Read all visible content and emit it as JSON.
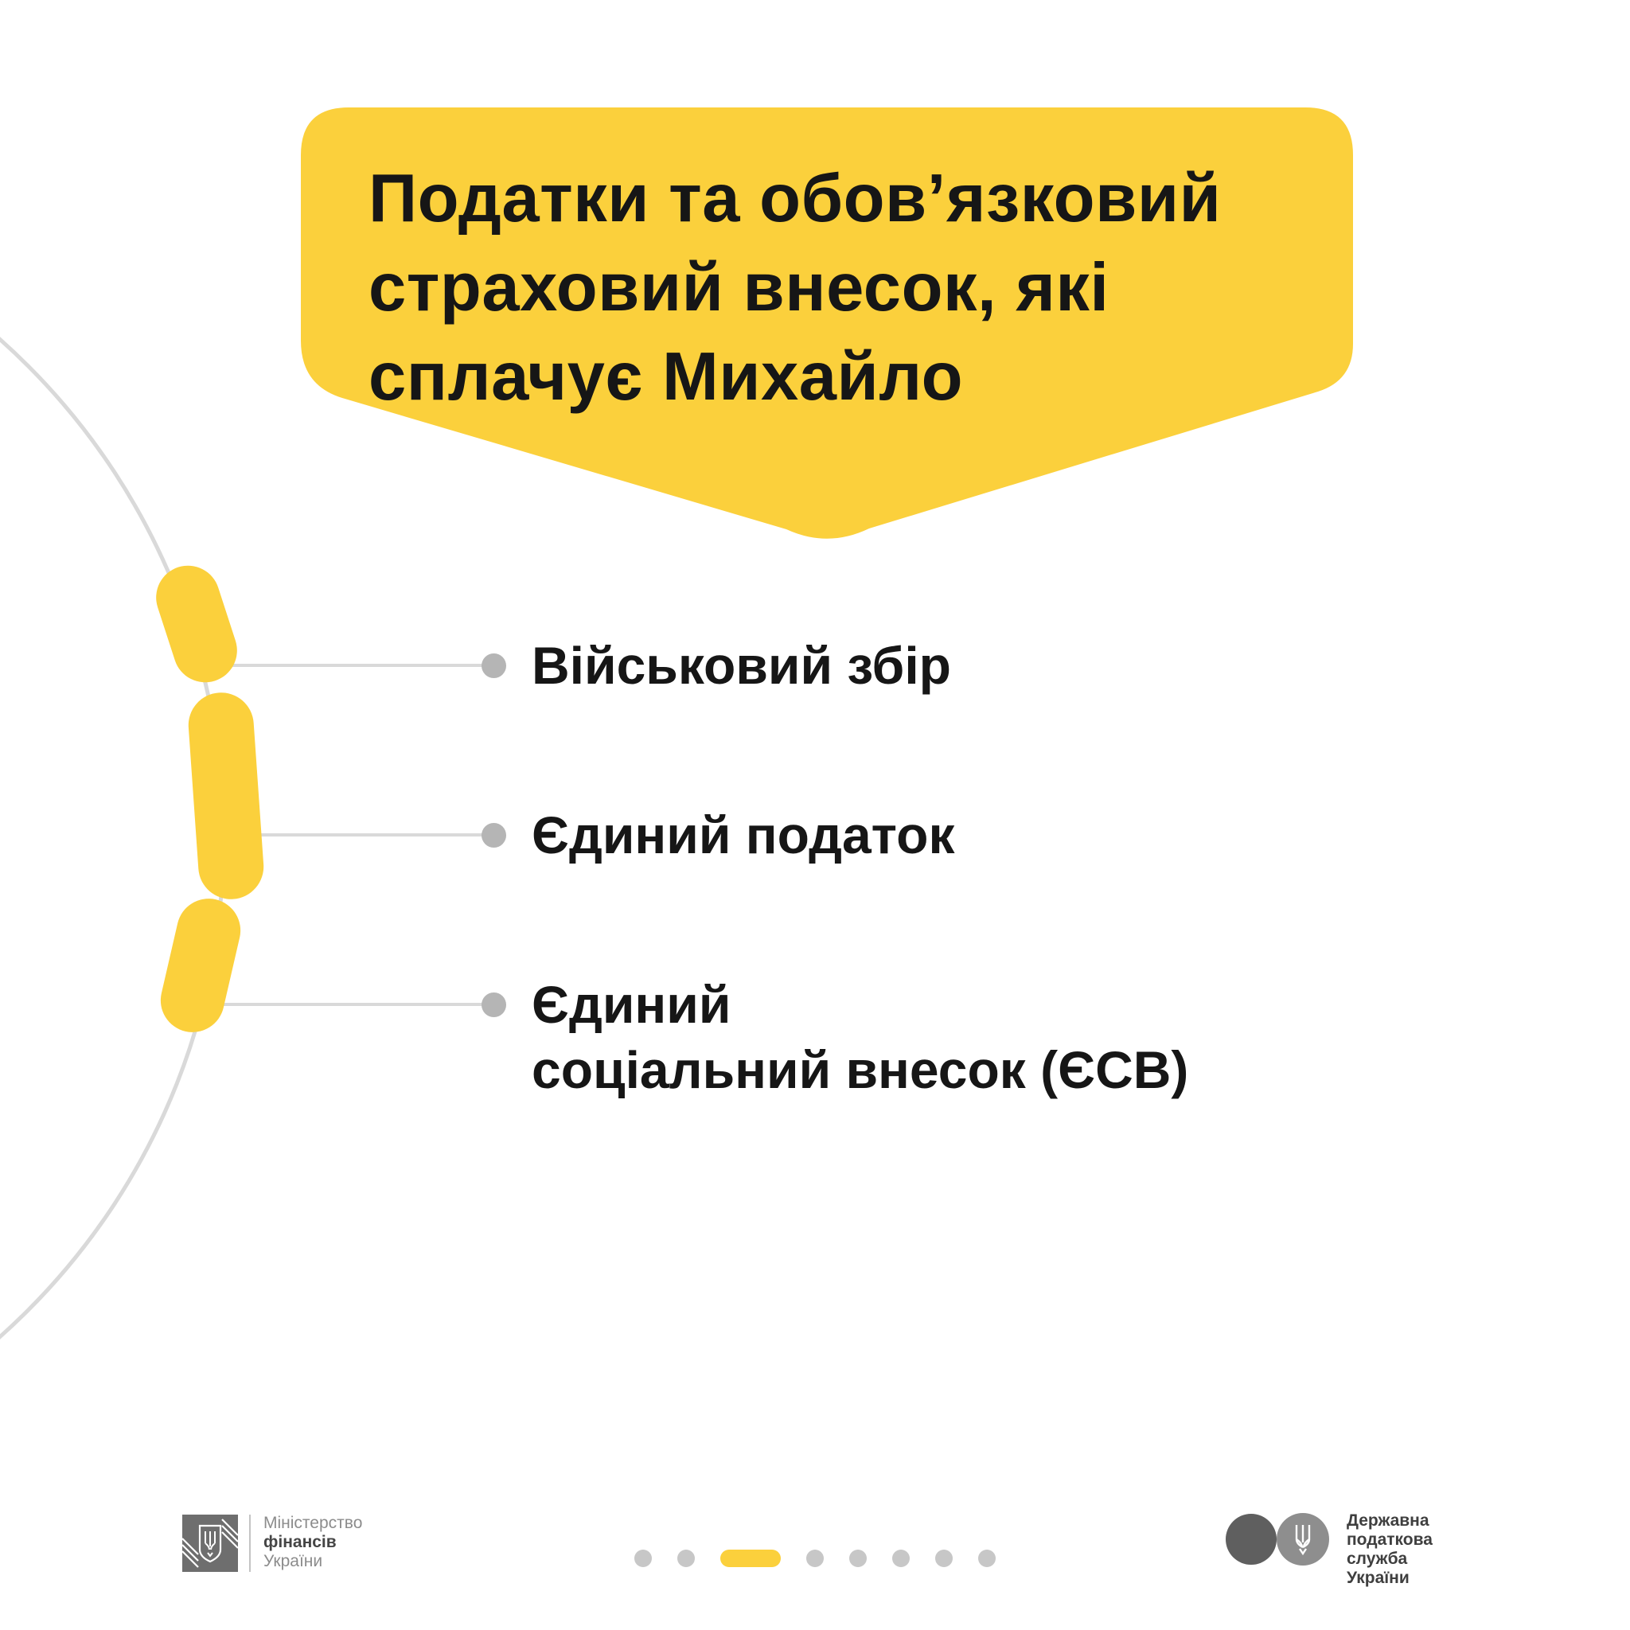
{
  "colors": {
    "accent_yellow": "#FBD03C",
    "text_dark": "#161616",
    "arc_gray": "#D9D9D9",
    "bullet_gray": "#B5B5B5",
    "pagination_inactive": "#C7C7C7",
    "footer_text_gray": "#8C8C8C"
  },
  "banner": {
    "title_lines": [
      "Податки та обов’язковий",
      "страховий внесок, які",
      "сплачує Михайло"
    ]
  },
  "list": {
    "items": [
      {
        "lines": [
          "Військовий збір"
        ]
      },
      {
        "lines": [
          "Єдиний податок"
        ]
      },
      {
        "lines": [
          "Єдиний",
          "соціальний внесок (ЄСВ)"
        ]
      }
    ]
  },
  "footer": {
    "minfin": {
      "line1": "Міністерство",
      "line2": "фінансів",
      "line3": "України"
    },
    "pagination": {
      "total": 8,
      "active_index": 2
    },
    "dps": {
      "line1": "Державна",
      "line2": "податкова",
      "line3": "служба України"
    }
  }
}
